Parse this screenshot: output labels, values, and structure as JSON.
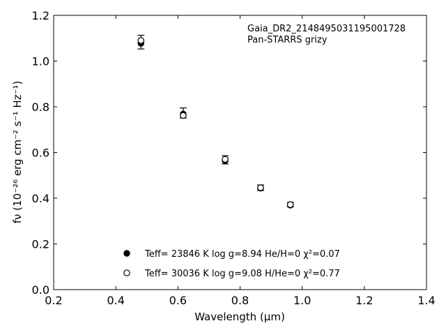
{
  "chart_data": {
    "type": "scatter",
    "xlim": [
      0.2,
      1.4
    ],
    "ylim": [
      0.0,
      1.2
    ],
    "x_ticks": [
      0.2,
      0.4,
      0.6,
      0.8,
      1.0,
      1.2,
      1.4
    ],
    "y_ticks": [
      0.0,
      0.2,
      0.4,
      0.6,
      0.8,
      1.0,
      1.2
    ],
    "x_tick_labels": [
      "0.2",
      "0.4",
      "0.6",
      "0.8",
      "1.0",
      "1.2",
      "1.4"
    ],
    "y_tick_labels": [
      "0.0",
      "0.2",
      "0.4",
      "0.6",
      "0.8",
      "1.0",
      "1.2"
    ],
    "xlabel": "Wavelength (μm)",
    "ylabel": "fν (10⁻²⁶ erg cm⁻² s⁻¹ Hz⁻¹)",
    "grid": false,
    "annotations": [
      "Gaia_DR2_2148495031195001728",
      "Pan-STARRS grizy"
    ],
    "observed": {
      "x": [
        0.481,
        0.617,
        0.752,
        0.866,
        0.962
      ],
      "y": [
        1.083,
        0.773,
        0.568,
        0.446,
        0.372
      ],
      "yerr": [
        0.03,
        0.022,
        0.018,
        0.012,
        0.01
      ]
    },
    "series": [
      {
        "name": "Teff= 23846 K  log g=8.94  He/H=0  χ²=0.07",
        "marker": "filled-circle",
        "color": "#000000",
        "x": [
          0.481,
          0.617,
          0.752,
          0.866,
          0.962
        ],
        "y": [
          1.078,
          0.768,
          0.565,
          0.444,
          0.37
        ]
      },
      {
        "name": "Teff= 30036 K  log g=9.08  H/He=0  χ²=0.77",
        "marker": "open-circle",
        "color": "#000000",
        "x": [
          0.481,
          0.617,
          0.752,
          0.866,
          0.962
        ],
        "y": [
          1.09,
          0.762,
          0.57,
          0.446,
          0.372
        ]
      }
    ],
    "legend_position": "bottom-center"
  }
}
